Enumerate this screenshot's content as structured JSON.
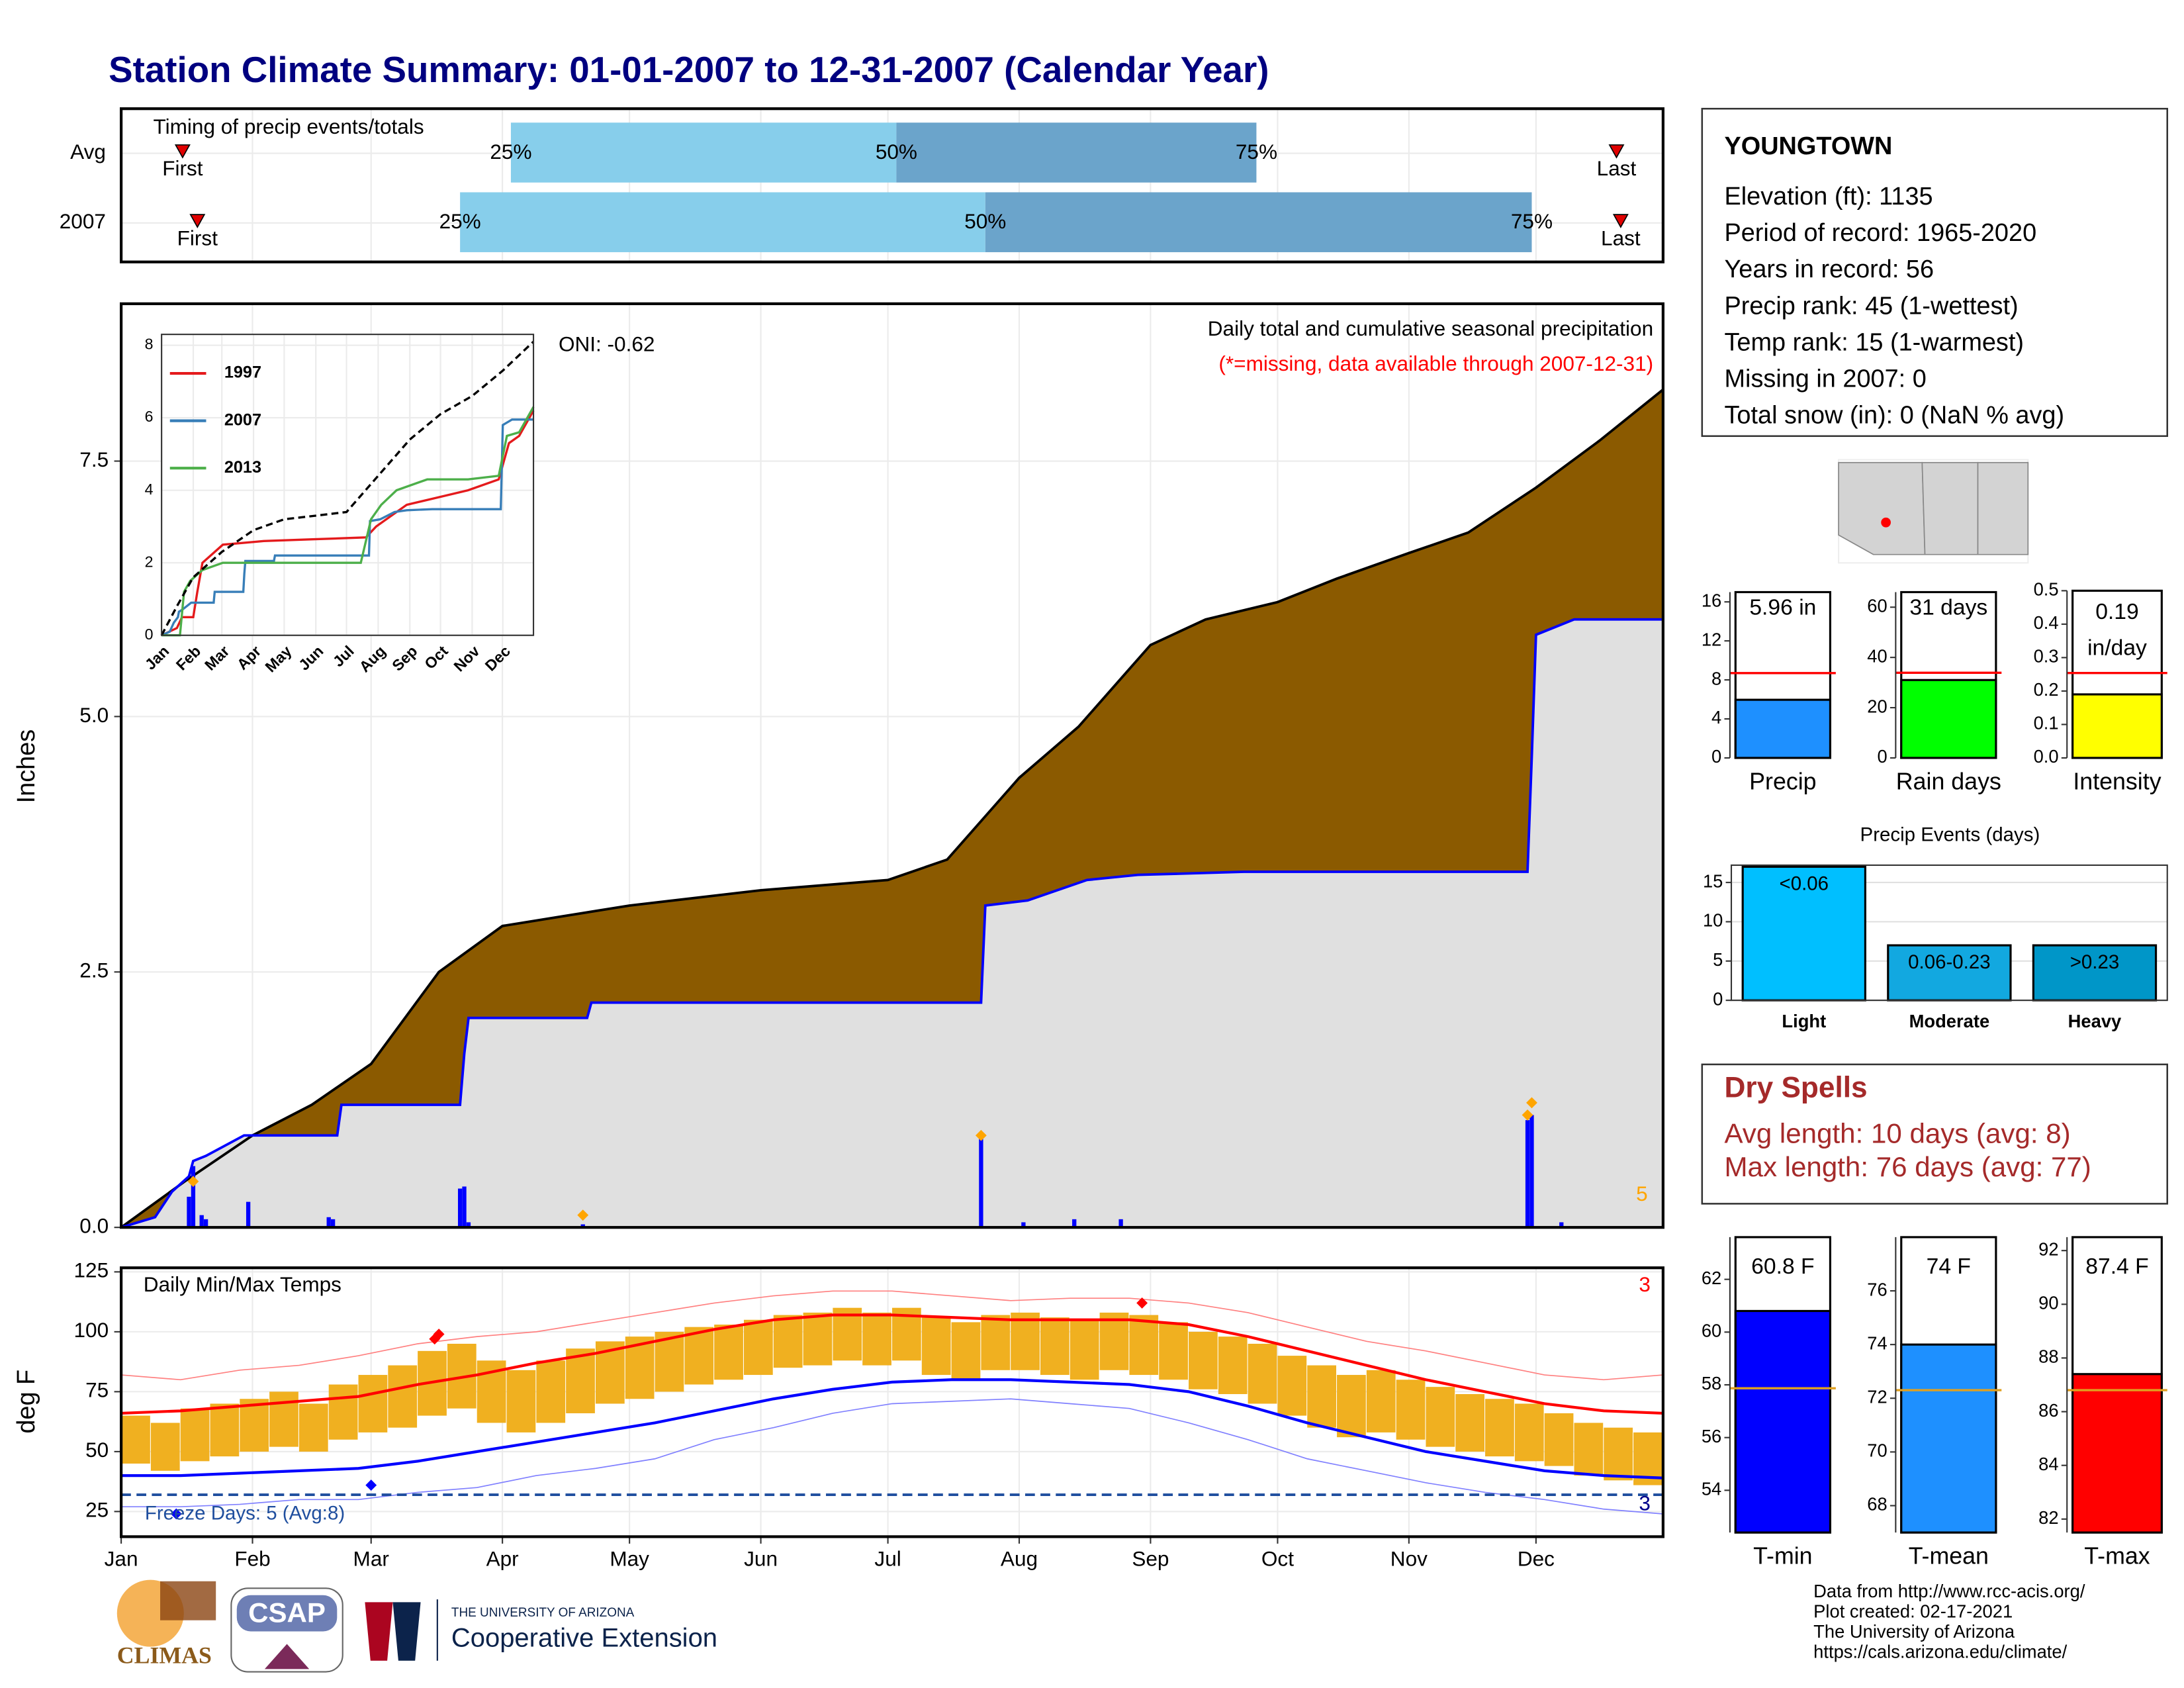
{
  "title": "Station Climate Summary: 01-01-2007 to 12-31-2007 (Calendar Year)",
  "footer": {
    "logos": [
      "CLIMAS",
      "CSAP",
      "THE UNIVERSITY OF ARIZONA",
      "Cooperative Extension"
    ],
    "credits": [
      "Data from http://www.rcc-acis.org/",
      "Plot created: 02-17-2021",
      "The University of Arizona",
      "https://cals.arizona.edu/climate/"
    ]
  },
  "chart_data": [
    {
      "type": "timing",
      "title": "Timing of precip events/totals",
      "categories": [
        "Avg",
        "2007"
      ],
      "xlim": [
        0,
        364
      ],
      "colors": [
        "#87ceeb",
        "#6ba4cb"
      ],
      "marker_color": "#e00000",
      "labels": {
        "first": "First",
        "q25": "25%",
        "q50": "50%",
        "q75": "75%",
        "last": "Last"
      },
      "rows": [
        {
          "first": 14.5,
          "q25": 92,
          "q50": 183,
          "q75": 268,
          "last": 353
        },
        {
          "first": 18,
          "q25": 80,
          "q50": 204,
          "q75": 333,
          "last": 354
        }
      ]
    },
    {
      "type": "cumulative-precip",
      "title": "Daily total and cumulative seasonal precipitation",
      "subtitle": "(*=missing, data available through 2007-12-31)",
      "annotation": "ONI: -0.62",
      "ylabel": "Inches",
      "xlim": [
        0,
        364
      ],
      "ylim": [
        0,
        9.04
      ],
      "yticks": [
        {
          "value": 0,
          "label": "0.0"
        },
        2.5,
        {
          "value": 5,
          "label": "5.0"
        },
        7.5
      ],
      "grid": true,
      "series": [
        {
          "color": "#8b5a00",
          "line_color": "#000000",
          "x": [
            0,
            15,
            31,
            45,
            59,
            75,
            90,
            105,
            120,
            151,
            181,
            195,
            212,
            226,
            243,
            256,
            273,
            287,
            304,
            318,
            334,
            349,
            364
          ],
          "values": [
            0,
            0.45,
            0.9,
            1.2,
            1.6,
            2.5,
            2.95,
            3.05,
            3.15,
            3.3,
            3.4,
            3.6,
            4.4,
            4.9,
            5.7,
            5.95,
            6.12,
            6.35,
            6.6,
            6.8,
            7.24,
            7.7,
            8.2
          ]
        },
        {
          "color": "#e0e0e0",
          "line_color": "#0000ff",
          "x": [
            0,
            8,
            12,
            16,
            17,
            20,
            29,
            51,
            52,
            80,
            81,
            82,
            110,
            111,
            203,
            204,
            214,
            228,
            240,
            265,
            332,
            333,
            334,
            343,
            364
          ],
          "values": [
            0,
            0.1,
            0.35,
            0.5,
            0.65,
            0.7,
            0.9,
            0.9,
            1.2,
            1.2,
            1.7,
            2.05,
            2.05,
            2.2,
            2.2,
            3.15,
            3.2,
            3.4,
            3.45,
            3.48,
            3.48,
            4.6,
            5.8,
            5.95,
            5.95
          ]
        }
      ],
      "daily": {
        "color": "#0000ff",
        "x": [
          16,
          17,
          19,
          20,
          30,
          49,
          50,
          80,
          81,
          82,
          109,
          203,
          213,
          225,
          236,
          332,
          333,
          340
        ],
        "values": [
          0.3,
          0.6,
          0.12,
          0.08,
          0.25,
          0.1,
          0.08,
          0.38,
          0.4,
          0.05,
          0.03,
          0.88,
          0.05,
          0.08,
          0.08,
          1.05,
          1.1,
          0.05
        ]
      },
      "records": {
        "color": "#ffa500",
        "x": [
          17,
          109,
          203,
          332,
          333
        ],
        "values": [
          0.45,
          0.12,
          0.9,
          1.1,
          1.22
        ]
      },
      "record_count": 5
    },
    {
      "type": "inset-line",
      "xlim": [
        0,
        364
      ],
      "ylim": [
        0,
        8.3
      ],
      "yticks": [
        0,
        2,
        4,
        6,
        8
      ],
      "xticks": [
        {
          "value": 0,
          "label": "Jan"
        },
        {
          "value": 31,
          "label": "Feb"
        },
        {
          "value": 59,
          "label": "Mar"
        },
        {
          "value": 90,
          "label": "Apr"
        },
        {
          "value": 120,
          "label": "May"
        },
        {
          "value": 151,
          "label": "Jun"
        },
        {
          "value": 181,
          "label": "Jul"
        },
        {
          "value": 212,
          "label": "Aug"
        },
        {
          "value": 243,
          "label": "Sep"
        },
        {
          "value": 273,
          "label": "Oct"
        },
        {
          "value": 304,
          "label": "Nov"
        },
        {
          "value": 334,
          "label": "Dec"
        }
      ],
      "series": [
        {
          "name": "1997",
          "color": "#e41a1c",
          "x": [
            0,
            15,
            20,
            31,
            35,
            40,
            60,
            100,
            150,
            200,
            210,
            240,
            270,
            300,
            330,
            340,
            350,
            364
          ],
          "values": [
            0,
            0.2,
            0.5,
            0.5,
            1.2,
            2,
            2.5,
            2.6,
            2.65,
            2.7,
            3,
            3.6,
            3.8,
            4,
            4.3,
            5.3,
            5.5,
            6.2
          ]
        },
        {
          "name": "2007",
          "color": "#377eb8",
          "x": [
            0,
            8,
            12,
            16,
            17,
            20,
            29,
            51,
            52,
            80,
            81,
            82,
            110,
            111,
            203,
            204,
            214,
            228,
            240,
            265,
            332,
            333,
            334,
            343,
            364
          ],
          "values": [
            0,
            0.1,
            0.35,
            0.5,
            0.65,
            0.7,
            0.9,
            0.9,
            1.2,
            1.2,
            1.7,
            2.05,
            2.05,
            2.2,
            2.2,
            3.15,
            3.2,
            3.4,
            3.45,
            3.48,
            3.48,
            4.6,
            5.8,
            5.95,
            5.95
          ]
        },
        {
          "name": "2013",
          "color": "#4daf4a",
          "x": [
            0,
            18,
            22,
            28,
            40,
            60,
            150,
            195,
            205,
            215,
            230,
            260,
            300,
            330,
            338,
            350,
            364
          ],
          "values": [
            0,
            0,
            1.2,
            1.5,
            1.8,
            2,
            2,
            2,
            3.2,
            3.6,
            4,
            4.3,
            4.3,
            4.4,
            5.5,
            5.6,
            6.3
          ]
        },
        {
          "color": "#000000",
          "dashed": true,
          "x": [
            0,
            15,
            31,
            59,
            90,
            120,
            151,
            181,
            212,
            243,
            273,
            304,
            334,
            364
          ],
          "values": [
            0,
            0.8,
            1.6,
            2.3,
            2.9,
            3.2,
            3.3,
            3.4,
            4.4,
            5.4,
            6.1,
            6.6,
            7.3,
            8.1
          ]
        }
      ]
    },
    {
      "type": "temperature",
      "title": "Daily Min/Max Temps",
      "ylabel": "deg F",
      "xlim": [
        0,
        364
      ],
      "ylim": [
        14.5,
        126.7
      ],
      "yticks": [
        25,
        50,
        75,
        100,
        125
      ],
      "grid": true,
      "xticks": [
        {
          "value": 0,
          "label": "Jan"
        },
        {
          "value": 31,
          "label": "Feb"
        },
        {
          "value": 59,
          "label": "Mar"
        },
        {
          "value": 90,
          "label": "Apr"
        },
        {
          "value": 120,
          "label": "May"
        },
        {
          "value": 151,
          "label": "Jun"
        },
        {
          "value": 181,
          "label": "Jul"
        },
        {
          "value": 212,
          "label": "Aug"
        },
        {
          "value": 243,
          "label": "Sep"
        },
        {
          "value": 273,
          "label": "Oct"
        },
        {
          "value": 304,
          "label": "Nov"
        },
        {
          "value": 334,
          "label": "Dec"
        }
      ],
      "record_high": {
        "color": "#ff8080",
        "x": [
          0,
          14,
          28,
          42,
          56,
          70,
          84,
          98,
          112,
          126,
          140,
          154,
          168,
          182,
          196,
          210,
          224,
          238,
          252,
          266,
          280,
          294,
          308,
          322,
          336,
          350,
          364
        ],
        "values": [
          82,
          80,
          84,
          86,
          90,
          95,
          98,
          100,
          104,
          108,
          112,
          115,
          117,
          117,
          115,
          113,
          114,
          114,
          112,
          108,
          102,
          96,
          92,
          87,
          82,
          80,
          82
        ]
      },
      "record_low": {
        "color": "#8080ff",
        "x": [
          0,
          14,
          28,
          42,
          56,
          70,
          84,
          98,
          112,
          126,
          140,
          154,
          168,
          182,
          196,
          210,
          224,
          238,
          252,
          266,
          280,
          294,
          308,
          322,
          336,
          350,
          364
        ],
        "values": [
          27,
          27,
          28,
          30,
          30,
          33,
          35,
          40,
          43,
          47,
          55,
          60,
          66,
          70,
          71,
          72,
          70,
          68,
          62,
          55,
          47,
          42,
          37,
          33,
          30,
          26,
          24
        ]
      },
      "daily": {
        "color": "#f0b020",
        "x": [
          0,
          7,
          14,
          21,
          28,
          35,
          42,
          49,
          56,
          63,
          70,
          77,
          84,
          91,
          98,
          105,
          112,
          119,
          126,
          133,
          140,
          147,
          154,
          161,
          168,
          175,
          182,
          189,
          196,
          203,
          210,
          217,
          224,
          231,
          238,
          245,
          252,
          259,
          266,
          273,
          280,
          287,
          294,
          301,
          308,
          315,
          322,
          329,
          336,
          343,
          350,
          357
        ],
        "low": [
          45,
          42,
          46,
          48,
          50,
          52,
          50,
          55,
          58,
          60,
          65,
          68,
          62,
          58,
          62,
          66,
          70,
          72,
          75,
          78,
          80,
          82,
          85,
          86,
          88,
          86,
          88,
          82,
          80,
          84,
          84,
          82,
          80,
          84,
          82,
          80,
          76,
          74,
          70,
          65,
          60,
          56,
          58,
          55,
          52,
          50,
          48,
          46,
          44,
          40,
          38,
          36
        ],
        "high": [
          65,
          62,
          68,
          70,
          72,
          75,
          70,
          78,
          82,
          86,
          92,
          95,
          88,
          84,
          88,
          93,
          96,
          98,
          100,
          102,
          103,
          105,
          107,
          108,
          110,
          108,
          110,
          106,
          104,
          107,
          108,
          106,
          105,
          108,
          107,
          104,
          100,
          98,
          95,
          90,
          86,
          82,
          84,
          80,
          77,
          74,
          72,
          70,
          66,
          62,
          60,
          58
        ]
      },
      "normal_max": {
        "color": "#ff0000",
        "x": [
          0,
          14,
          28,
          42,
          56,
          70,
          84,
          98,
          112,
          126,
          140,
          154,
          168,
          182,
          196,
          210,
          224,
          238,
          252,
          266,
          280,
          294,
          308,
          322,
          336,
          350,
          364
        ],
        "values": [
          66,
          67,
          69,
          71,
          73,
          78,
          82,
          87,
          91,
          96,
          101,
          105,
          107,
          107,
          106,
          105,
          105,
          105,
          103,
          98,
          92,
          86,
          80,
          75,
          70,
          67,
          66
        ]
      },
      "normal_min": {
        "color": "#0000ff",
        "x": [
          0,
          14,
          28,
          42,
          56,
          70,
          84,
          98,
          112,
          126,
          140,
          154,
          168,
          182,
          196,
          210,
          224,
          238,
          252,
          266,
          280,
          294,
          308,
          322,
          336,
          350,
          364
        ],
        "values": [
          40,
          40,
          41,
          42,
          43,
          46,
          50,
          54,
          58,
          62,
          67,
          72,
          76,
          79,
          80,
          80,
          79,
          78,
          75,
          69,
          62,
          56,
          50,
          46,
          42,
          40,
          39
        ]
      },
      "record_highs": {
        "color": "#ff0000",
        "x": [
          74,
          75,
          241
        ],
        "values": [
          97,
          99,
          112
        ]
      },
      "record_lows": {
        "color": "#0000ff",
        "x": [
          13,
          59
        ],
        "values": [
          24,
          36
        ]
      },
      "freeze": {
        "value": 32,
        "label": "Freeze Days: 5 (Avg:8)",
        "color": "#1f4e9e"
      },
      "hot_count": 3,
      "cold_count": 3
    },
    {
      "type": "info",
      "title": "YOUNGTOWN",
      "lines": [
        "Elevation (ft): 1135",
        "Period of record: 1965-2020",
        "Years in record: 56",
        "Precip rank: 45 (1-wettest)",
        "Temp rank: 15 (1-warmest)",
        "Missing in 2007: 0",
        "Total snow (in): 0 (NaN % avg)"
      ]
    },
    {
      "type": "gauge",
      "value": 5.96,
      "value_label": [
        "5.96 in"
      ],
      "normal": 8.7,
      "normal_color": "#ff0000",
      "color": "#1e90ff",
      "ylim": [
        0,
        17
      ],
      "yticks": [
        0,
        4,
        8,
        12,
        16
      ],
      "xlabel": "Precip"
    },
    {
      "type": "gauge",
      "value": 31,
      "value_label": [
        "31 days"
      ],
      "normal": 33.9,
      "normal_color": "#ff0000",
      "color": "#00ff00",
      "ylim": [
        0,
        66
      ],
      "yticks": [
        0,
        20,
        40,
        60
      ],
      "xlabel": "Rain days"
    },
    {
      "type": "gauge",
      "value": 0.19,
      "value_label": [
        "0.19",
        "in/day"
      ],
      "normal": 0.254,
      "normal_color": "#ff0000",
      "color": "#ffff00",
      "ylim": [
        0,
        0.5
      ],
      "yticks": [
        {
          "value": 0,
          "label": "0.0"
        },
        0.1,
        0.2,
        0.3,
        0.4,
        0.5
      ],
      "xlabel": "Intensity"
    },
    {
      "type": "bar",
      "title": "Precip Events (days)",
      "categories": [
        "Light",
        "Moderate",
        "Heavy"
      ],
      "values": [
        17,
        7,
        7
      ],
      "bar_labels": [
        "<0.06",
        "0.06-0.23",
        ">0.23"
      ],
      "colors": [
        "#00bfff",
        "#12a8e0",
        "#0096c8"
      ],
      "ylim": [
        0,
        17.2
      ],
      "yticks": [
        0,
        5,
        10,
        15
      ],
      "grid": true
    },
    {
      "type": "info",
      "title": "Dry Spells",
      "color": "#a52a2a",
      "lines": [
        "Avg length: 10 days (avg: 8)",
        "Max length: 76 days (avg: 77)"
      ]
    },
    {
      "type": "gauge",
      "value": 60.8,
      "value_label": [
        "60.8 F"
      ],
      "normal": 57.87,
      "normal_color": "#e0a020",
      "color": "#0000ff",
      "ylim": [
        52.4,
        63.6
      ],
      "yticks": [
        54,
        56,
        58,
        60,
        62
      ],
      "xlabel": "T-min"
    },
    {
      "type": "gauge",
      "value": 74,
      "value_label": [
        "74 F"
      ],
      "normal": 72.3,
      "normal_color": "#e0a020",
      "color": "#1e90ff",
      "ylim": [
        67,
        78
      ],
      "yticks": [
        68,
        70,
        72,
        74,
        76
      ],
      "xlabel": "T-mean"
    },
    {
      "type": "gauge",
      "value": 87.4,
      "value_label": [
        "87.4 F"
      ],
      "normal": 86.8,
      "normal_color": "#e0a020",
      "color": "#ff0000",
      "ylim": [
        81.5,
        92.5
      ],
      "yticks": [
        82,
        84,
        86,
        88,
        90,
        92
      ],
      "xlabel": "T-max"
    }
  ]
}
